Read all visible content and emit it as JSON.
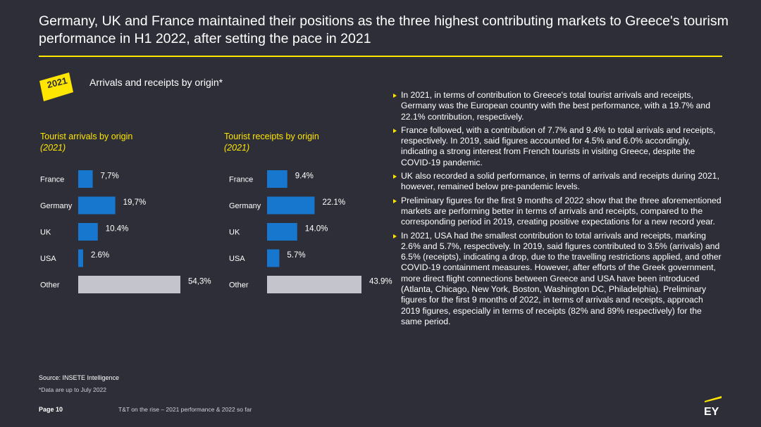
{
  "header": {
    "title": "Germany, UK and France maintained their positions as the three highest contributing markets to Greece's tourism performance in H1 2022, after setting the pace in 2021"
  },
  "badge": {
    "year": "2021"
  },
  "section_title": "Arrivals and receipts by origin*",
  "chart_data": [
    {
      "type": "bar",
      "orientation": "horizontal",
      "title": "Tourist arrivals by origin",
      "subtitle": "(2021)",
      "categories": [
        "France",
        "Germany",
        "UK",
        "USA",
        "Other"
      ],
      "values": [
        7.7,
        19.7,
        10.4,
        2.6,
        54.3
      ],
      "labels": [
        "7,7%",
        "19,7%",
        "10.4%",
        "2.6%",
        "54,3%"
      ],
      "value_unit": "%",
      "xlim": [
        0,
        54.3
      ],
      "colors": [
        "#1777cf",
        "#1777cf",
        "#1777cf",
        "#1777cf",
        "#c4c4cd"
      ]
    },
    {
      "type": "bar",
      "orientation": "horizontal",
      "title": "Tourist receipts by origin",
      "subtitle": "(2021)",
      "categories": [
        "France",
        "Germany",
        "UK",
        "USA",
        "Other"
      ],
      "values": [
        9.4,
        22.1,
        14.0,
        5.7,
        43.9
      ],
      "labels": [
        "9.4%",
        "22.1%",
        "14.0%",
        "5.7%",
        "43.9%"
      ],
      "value_unit": "%",
      "xlim": [
        0,
        43.9
      ],
      "colors": [
        "#1777cf",
        "#1777cf",
        "#1777cf",
        "#1777cf",
        "#c4c4cd"
      ]
    }
  ],
  "bullets": [
    "In 2021, in terms of contribution to Greece's total tourist arrivals and receipts, Germany was the European country with the best performance, with a 19.7% and 22.1% contribution, respectively.",
    "France followed, with a contribution of 7.7% and 9.4% to total arrivals and receipts, respectively. In 2019, said figures accounted for 4.5% and 6.0% accordingly, indicating a strong interest from French tourists in visiting Greece, despite the COVID-19 pandemic.",
    "UK also recorded a solid performance, in terms of arrivals and receipts during 2021, however, remained below pre-pandemic levels.",
    "Preliminary figures for the first 9 months of 2022 show that the three aforementioned markets are performing better in terms of arrivals and receipts, compared to the corresponding period in 2019, creating positive expectations for a new record year.",
    "In 2021, USA had the smallest contribution to total arrivals and receipts, marking 2.6% and 5.7%, respectively. In 2019, said figures contributed to 3.5% (arrivals) and 6.5% (receipts), indicating a drop, due to the travelling restrictions applied, and other COVID-19 containment measures. However, after efforts of the Greek government, more direct flight connections between Greece and USA have been introduced (Atlanta, Chicago, New York, Boston, Washington DC, Philadelphia). Preliminary figures for the first 9 months of 2022, in terms of arrivals and receipts, approach 2019 figures, especially in terms of receipts (82% and 89% respectively) for the same period."
  ],
  "source": "Source: INSETE Intelligence",
  "footnote": "*Data are up to July 2022",
  "footer": {
    "page": "Page 10",
    "text": "T&T on the rise – 2021 performance & 2022 so far",
    "logo": "EY"
  },
  "theme": {
    "accent": "#ffe600",
    "bar_blue": "#1777cf",
    "bar_grey": "#c4c4cd"
  }
}
